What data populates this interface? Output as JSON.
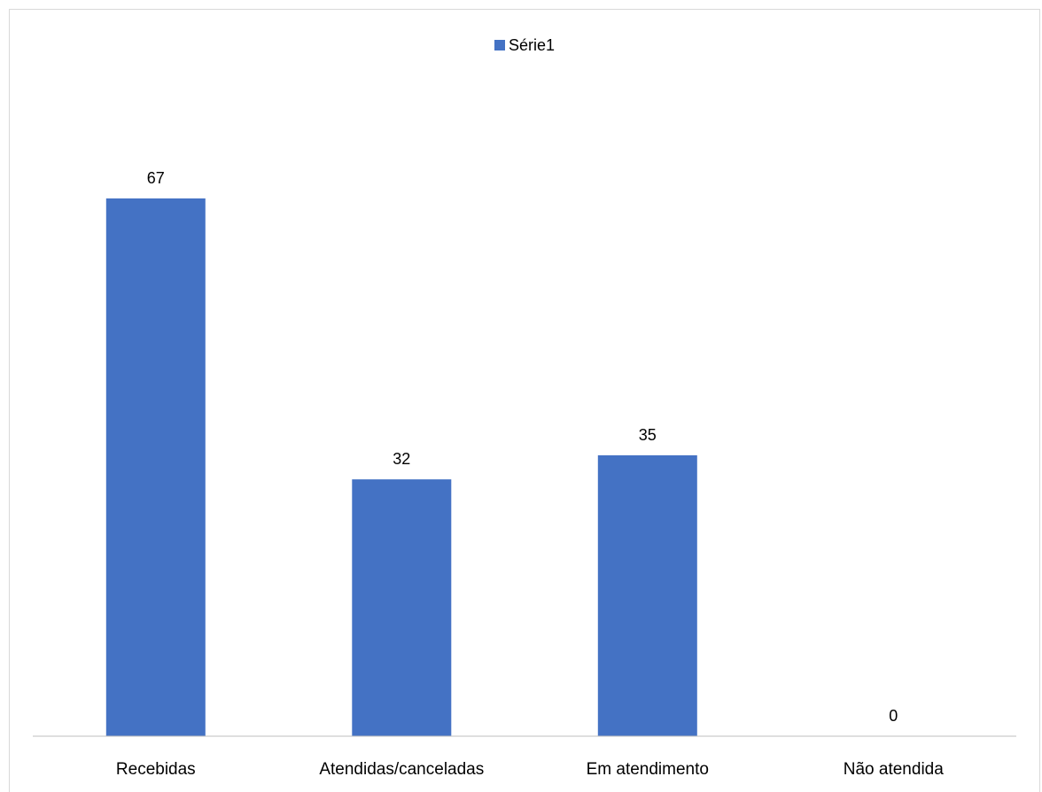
{
  "chart_data": {
    "type": "bar",
    "title": "",
    "xlabel": "",
    "ylabel": "",
    "categories": [
      "Recebidas",
      "Atendidas/canceladas",
      "Em atendimento",
      "Não atendida"
    ],
    "series": [
      {
        "name": "Série1",
        "values": [
          67,
          32,
          35,
          0
        ],
        "color": "#4472c4"
      }
    ],
    "ylim": [
      0,
      80
    ],
    "data_labels": true,
    "grid": false,
    "legend_position": "top-center",
    "axis_color": "#bfbfbf"
  }
}
